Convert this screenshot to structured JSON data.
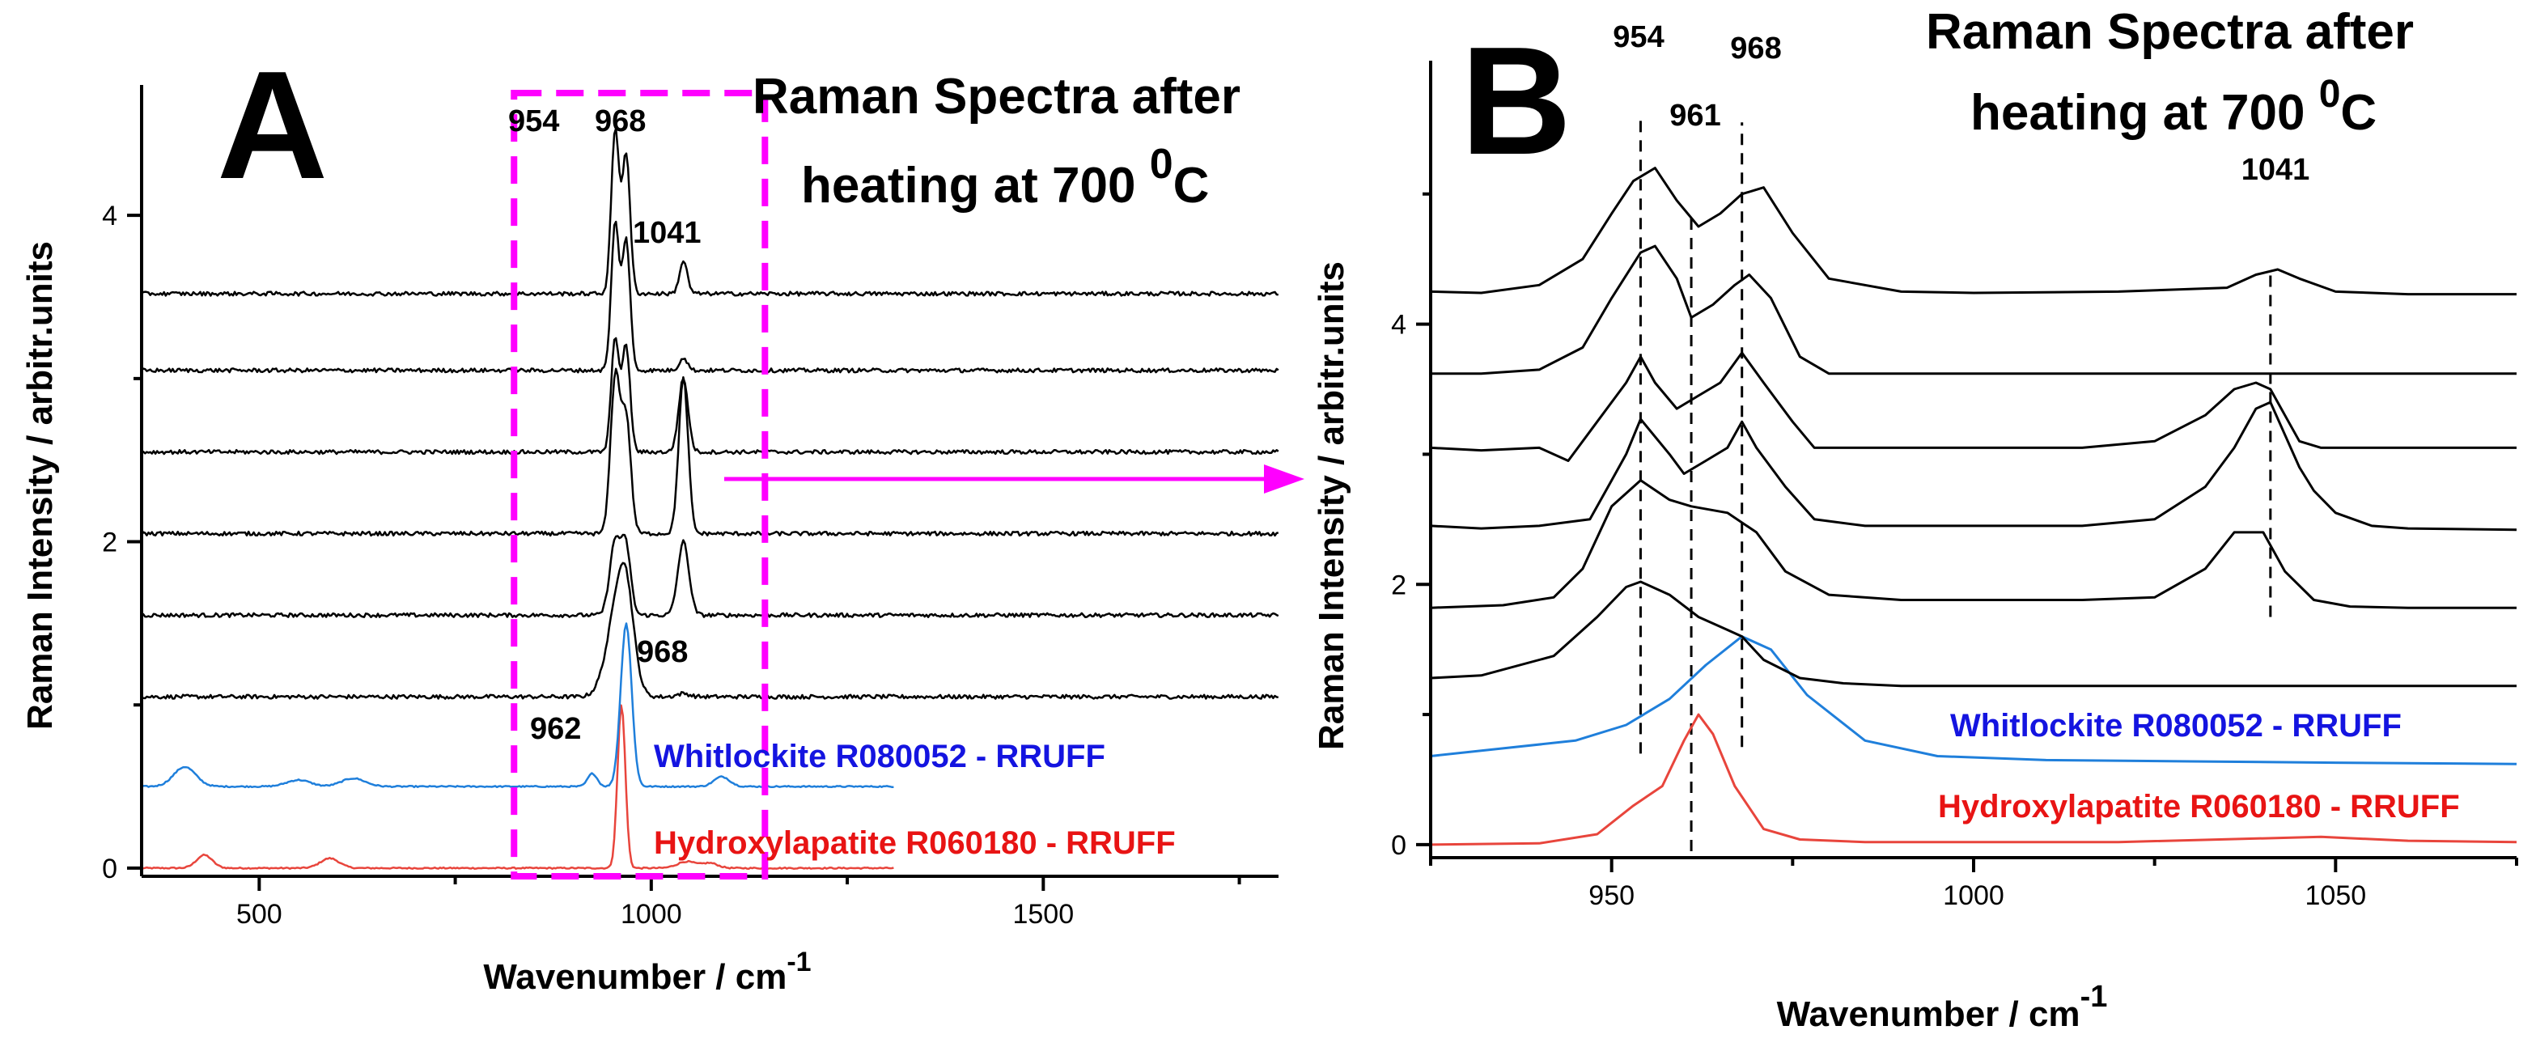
{
  "colors": {
    "sample": "#000000",
    "whitlockite": "#1f7fdb",
    "hydroxylapatite": "#e8453c",
    "box": "#ff00ff",
    "label_blue": "#1414e0",
    "label_red": "#e81414"
  },
  "panelA": {
    "letter": "A",
    "title_line1": "Raman Spectra after",
    "title_line2_prefix": "heating at 700 ",
    "title_sup": "0",
    "title_suffix": "C",
    "xlabel_main": "Wavenumber / cm",
    "xlabel_sup": "-1",
    "ylabel": "Raman Intensity / arbitr.units",
    "peak_labels": [
      "954",
      "968",
      "1041"
    ],
    "ref_peak_blue": "968",
    "ref_peak_red": "962",
    "ref_label_blue": "Whitlockite R080052 - RRUFF",
    "ref_label_red": "Hydroxylapatite R060180 - RRUFF"
  },
  "panelB": {
    "letter": "B",
    "title_line1": "Raman Spectra after",
    "title_line2_prefix": "heating at 700 ",
    "title_sup": "0",
    "title_suffix": "C",
    "xlabel_main": "Wavenumber / cm",
    "xlabel_sup": "-1",
    "ylabel": "Raman Intensity / arbitr.units",
    "peak_labels": [
      "954",
      "961",
      "968",
      "1041"
    ],
    "ref_label_blue": "Whitlockite R080052 - RRUFF",
    "ref_label_red": "Hydroxylapatite R060180 - RRUFF"
  },
  "chart_data": [
    {
      "type": "line",
      "panel": "A",
      "xlabel": "Wavenumber / cm-1",
      "ylabel": "Raman Intensity / arbitr.units",
      "xlim": [
        350,
        1800
      ],
      "ylim": [
        -0.05,
        4.7
      ],
      "x_ticks": [
        500,
        1000,
        1500
      ],
      "y_ticks": [
        0,
        2,
        4
      ],
      "highlight_box_x": [
        825,
        1145
      ],
      "series": [
        {
          "name": "Hydroxylapatite R060180 - RRUFF",
          "baseline": 0.0,
          "xrange": [
            350,
            1310
          ],
          "peaks": [
            {
              "x": 962,
              "h": 1.0,
              "w": 5
            },
            {
              "x": 430,
              "h": 0.08,
              "w": 10
            },
            {
              "x": 590,
              "h": 0.06,
              "w": 12
            },
            {
              "x": 1045,
              "h": 0.04,
              "w": 12
            },
            {
              "x": 1075,
              "h": 0.03,
              "w": 10
            }
          ]
        },
        {
          "name": "Whitlockite R080052 - RRUFF",
          "baseline": 0.5,
          "xrange": [
            350,
            1310
          ],
          "peaks": [
            {
              "x": 968,
              "h": 1.0,
              "w": 7
            },
            {
              "x": 405,
              "h": 0.12,
              "w": 14
            },
            {
              "x": 550,
              "h": 0.04,
              "w": 15
            },
            {
              "x": 620,
              "h": 0.05,
              "w": 15
            },
            {
              "x": 925,
              "h": 0.08,
              "w": 6
            },
            {
              "x": 1090,
              "h": 0.06,
              "w": 10
            }
          ]
        },
        {
          "baseline": 1.05,
          "xrange": [
            350,
            1800
          ],
          "peaks": [
            {
              "x": 957,
              "h": 0.5,
              "w": 14
            },
            {
              "x": 968,
              "h": 0.42,
              "w": 10
            },
            {
              "x": 1041,
              "h": 0.02,
              "w": 8
            }
          ]
        },
        {
          "baseline": 1.55,
          "xrange": [
            350,
            1800
          ],
          "peaks": [
            {
              "x": 954,
              "h": 0.45,
              "w": 7
            },
            {
              "x": 968,
              "h": 0.4,
              "w": 6
            },
            {
              "x": 1041,
              "h": 0.45,
              "w": 7
            }
          ]
        },
        {
          "baseline": 2.05,
          "xrange": [
            350,
            1800
          ],
          "peaks": [
            {
              "x": 954,
              "h": 0.95,
              "w": 6
            },
            {
              "x": 968,
              "h": 0.7,
              "w": 6
            },
            {
              "x": 1041,
              "h": 0.95,
              "w": 6
            }
          ]
        },
        {
          "baseline": 2.55,
          "xrange": [
            350,
            1800
          ],
          "peaks": [
            {
              "x": 954,
              "h": 0.7,
              "w": 5
            },
            {
              "x": 968,
              "h": 0.65,
              "w": 5
            },
            {
              "x": 1041,
              "h": 0.45,
              "w": 6
            }
          ]
        },
        {
          "baseline": 3.05,
          "xrange": [
            350,
            1800
          ],
          "peaks": [
            {
              "x": 954,
              "h": 0.9,
              "w": 5
            },
            {
              "x": 968,
              "h": 0.8,
              "w": 5
            },
            {
              "x": 1041,
              "h": 0.08,
              "w": 5
            }
          ]
        },
        {
          "baseline": 3.52,
          "xrange": [
            350,
            1800
          ],
          "peaks": [
            {
              "x": 954,
              "h": 1.0,
              "w": 5
            },
            {
              "x": 968,
              "h": 0.85,
              "w": 5
            },
            {
              "x": 1041,
              "h": 0.2,
              "w": 5
            }
          ]
        }
      ]
    },
    {
      "type": "line",
      "panel": "B",
      "xlabel": "Wavenumber / cm-1",
      "ylabel": "Raman Intensity / arbitr.units",
      "xlim": [
        925,
        1075
      ],
      "ylim": [
        -0.1,
        5.9
      ],
      "x_ticks": [
        950,
        1000,
        1050
      ],
      "y_ticks": [
        0,
        2,
        4
      ],
      "dashed_markers_x": [
        954,
        961,
        968,
        1041
      ],
      "series": [
        {
          "name": "Hydroxylapatite R060180 - RRUFF",
          "baseline": 0.0,
          "x": [
            925,
            940,
            948,
            953,
            957,
            960,
            962,
            964,
            967,
            971,
            976,
            985,
            1000,
            1020,
            1048,
            1060,
            1075
          ],
          "y": [
            0.0,
            0.01,
            0.08,
            0.3,
            0.45,
            0.8,
            1.0,
            0.85,
            0.45,
            0.12,
            0.04,
            0.02,
            0.02,
            0.02,
            0.06,
            0.03,
            0.02
          ]
        },
        {
          "name": "Whitlockite R080052 - RRUFF",
          "baseline": 0.6,
          "x": [
            925,
            935,
            945,
            952,
            958,
            963,
            968,
            972,
            977,
            985,
            995,
            1010,
            1030,
            1050,
            1075
          ],
          "y": [
            0.68,
            0.74,
            0.8,
            0.92,
            1.12,
            1.38,
            1.6,
            1.5,
            1.15,
            0.8,
            0.68,
            0.65,
            0.64,
            0.63,
            0.62
          ]
        },
        {
          "baseline": 1.25,
          "x": [
            925,
            932,
            942,
            948,
            952,
            954,
            958,
            962,
            966,
            968,
            971,
            976,
            982,
            990,
            1000,
            1015,
            1030,
            1045,
            1060,
            1075
          ],
          "y": [
            1.28,
            1.3,
            1.45,
            1.75,
            1.98,
            2.02,
            1.92,
            1.75,
            1.65,
            1.6,
            1.42,
            1.28,
            1.24,
            1.22,
            1.22,
            1.22,
            1.22,
            1.22,
            1.22,
            1.22
          ]
        },
        {
          "baseline": 1.82,
          "x": [
            925,
            935,
            942,
            946,
            950,
            954,
            958,
            961,
            966,
            970,
            974,
            980,
            990,
            1000,
            1015,
            1025,
            1032,
            1036,
            1040,
            1043,
            1047,
            1052,
            1060,
            1075
          ],
          "y": [
            1.82,
            1.84,
            1.9,
            2.12,
            2.6,
            2.8,
            2.65,
            2.6,
            2.55,
            2.4,
            2.1,
            1.92,
            1.88,
            1.88,
            1.88,
            1.9,
            2.12,
            2.4,
            2.4,
            2.1,
            1.88,
            1.83,
            1.82,
            1.82
          ]
        },
        {
          "baseline": 2.42,
          "x": [
            925,
            932,
            940,
            947,
            950,
            952,
            954,
            958,
            960,
            963,
            966,
            968,
            970,
            974,
            978,
            985,
            995,
            1005,
            1015,
            1025,
            1032,
            1036,
            1039,
            1041,
            1043,
            1045,
            1047,
            1050,
            1055,
            1060,
            1075
          ],
          "y": [
            2.45,
            2.43,
            2.45,
            2.5,
            2.8,
            3.0,
            3.27,
            3.0,
            2.85,
            2.95,
            3.05,
            3.25,
            3.05,
            2.75,
            2.5,
            2.45,
            2.45,
            2.45,
            2.45,
            2.5,
            2.75,
            3.05,
            3.35,
            3.4,
            3.15,
            2.9,
            2.72,
            2.55,
            2.45,
            2.43,
            2.42
          ]
        },
        {
          "baseline": 3.02,
          "x": [
            925,
            932,
            940,
            944,
            948,
            952,
            954,
            956,
            959,
            962,
            965,
            968,
            971,
            975,
            978,
            985,
            995,
            1005,
            1015,
            1025,
            1032,
            1036,
            1039,
            1041,
            1043,
            1045,
            1048,
            1053,
            1060,
            1075
          ],
          "y": [
            3.05,
            3.03,
            3.05,
            2.95,
            3.25,
            3.55,
            3.75,
            3.55,
            3.35,
            3.45,
            3.55,
            3.78,
            3.55,
            3.25,
            3.05,
            3.05,
            3.05,
            3.05,
            3.05,
            3.1,
            3.3,
            3.5,
            3.55,
            3.5,
            3.3,
            3.1,
            3.05,
            3.05,
            3.05,
            3.05
          ]
        },
        {
          "baseline": 3.62,
          "x": [
            925,
            932,
            940,
            946,
            950,
            954,
            956,
            959,
            961,
            964,
            967,
            969,
            972,
            976,
            980,
            990,
            1000,
            1020,
            1040,
            1060,
            1075
          ],
          "y": [
            3.62,
            3.62,
            3.65,
            3.82,
            4.2,
            4.55,
            4.6,
            4.35,
            4.05,
            4.15,
            4.3,
            4.38,
            4.2,
            3.75,
            3.62,
            3.62,
            3.62,
            3.62,
            3.62,
            3.62,
            3.62
          ]
        },
        {
          "baseline": 4.22,
          "x": [
            925,
            932,
            940,
            946,
            950,
            953,
            956,
            959,
            962,
            965,
            968,
            971,
            975,
            980,
            990,
            1000,
            1020,
            1035,
            1039,
            1042,
            1045,
            1050,
            1060,
            1075
          ],
          "y": [
            4.25,
            4.24,
            4.3,
            4.5,
            4.85,
            5.1,
            5.2,
            4.95,
            4.75,
            4.85,
            5.0,
            5.05,
            4.7,
            4.35,
            4.25,
            4.24,
            4.25,
            4.28,
            4.38,
            4.42,
            4.35,
            4.25,
            4.23,
            4.23
          ]
        }
      ]
    }
  ]
}
